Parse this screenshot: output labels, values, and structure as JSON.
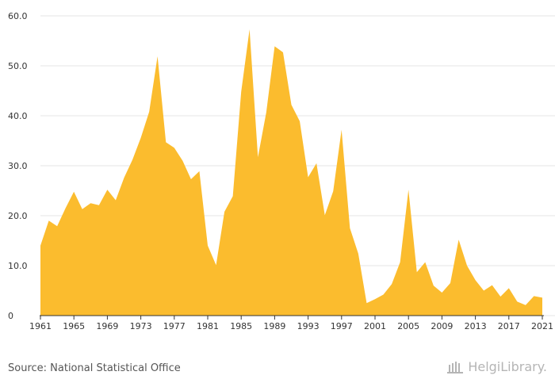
{
  "chart_data": {
    "type": "area",
    "title": "",
    "xlabel": "",
    "ylabel": "",
    "ylim": [
      0,
      60
    ],
    "yticks": [
      "0",
      "10.0",
      "20.0",
      "30.0",
      "40.0",
      "50.0",
      "60.0"
    ],
    "xticks": [
      "1961",
      "1965",
      "1969",
      "1973",
      "1977",
      "1981",
      "1985",
      "1989",
      "1993",
      "1997",
      "2001",
      "2005",
      "2009",
      "2013",
      "2017",
      "2021"
    ],
    "grid": true,
    "legend": "none",
    "color": "#fbbc2e",
    "x": [
      1961,
      1962,
      1963,
      1964,
      1965,
      1966,
      1967,
      1968,
      1969,
      1970,
      1971,
      1972,
      1973,
      1974,
      1975,
      1976,
      1977,
      1978,
      1979,
      1980,
      1981,
      1982,
      1983,
      1984,
      1985,
      1986,
      1987,
      1988,
      1989,
      1990,
      1991,
      1992,
      1993,
      1994,
      1995,
      1996,
      1997,
      1998,
      1999,
      2000,
      2001,
      2002,
      2003,
      2004,
      2005,
      2006,
      2007,
      2008,
      2009,
      2010,
      2011,
      2012,
      2013,
      2014,
      2015,
      2016,
      2017,
      2018,
      2019,
      2020,
      2021
    ],
    "values": [
      14.0,
      19.0,
      17.9,
      21.5,
      24.8,
      21.3,
      22.5,
      22.1,
      25.2,
      23.1,
      27.6,
      31.2,
      35.6,
      40.8,
      51.9,
      34.7,
      33.6,
      31.0,
      27.3,
      28.9,
      14.0,
      10.1,
      20.8,
      23.9,
      44.8,
      57.3,
      31.7,
      40.7,
      53.9,
      52.7,
      42.2,
      38.9,
      27.7,
      30.5,
      20.1,
      24.9,
      37.2,
      17.5,
      12.4,
      2.5,
      3.3,
      4.2,
      6.3,
      10.7,
      25.2,
      8.7,
      10.7,
      6.0,
      4.6,
      6.5,
      15.2,
      10.0,
      7.1,
      5.0,
      6.1,
      3.8,
      5.5,
      2.8,
      2.1,
      3.9,
      3.6
    ]
  },
  "footer": {
    "source": "Source: National Statistical Office",
    "logo_text": "HelgiLibrary."
  }
}
